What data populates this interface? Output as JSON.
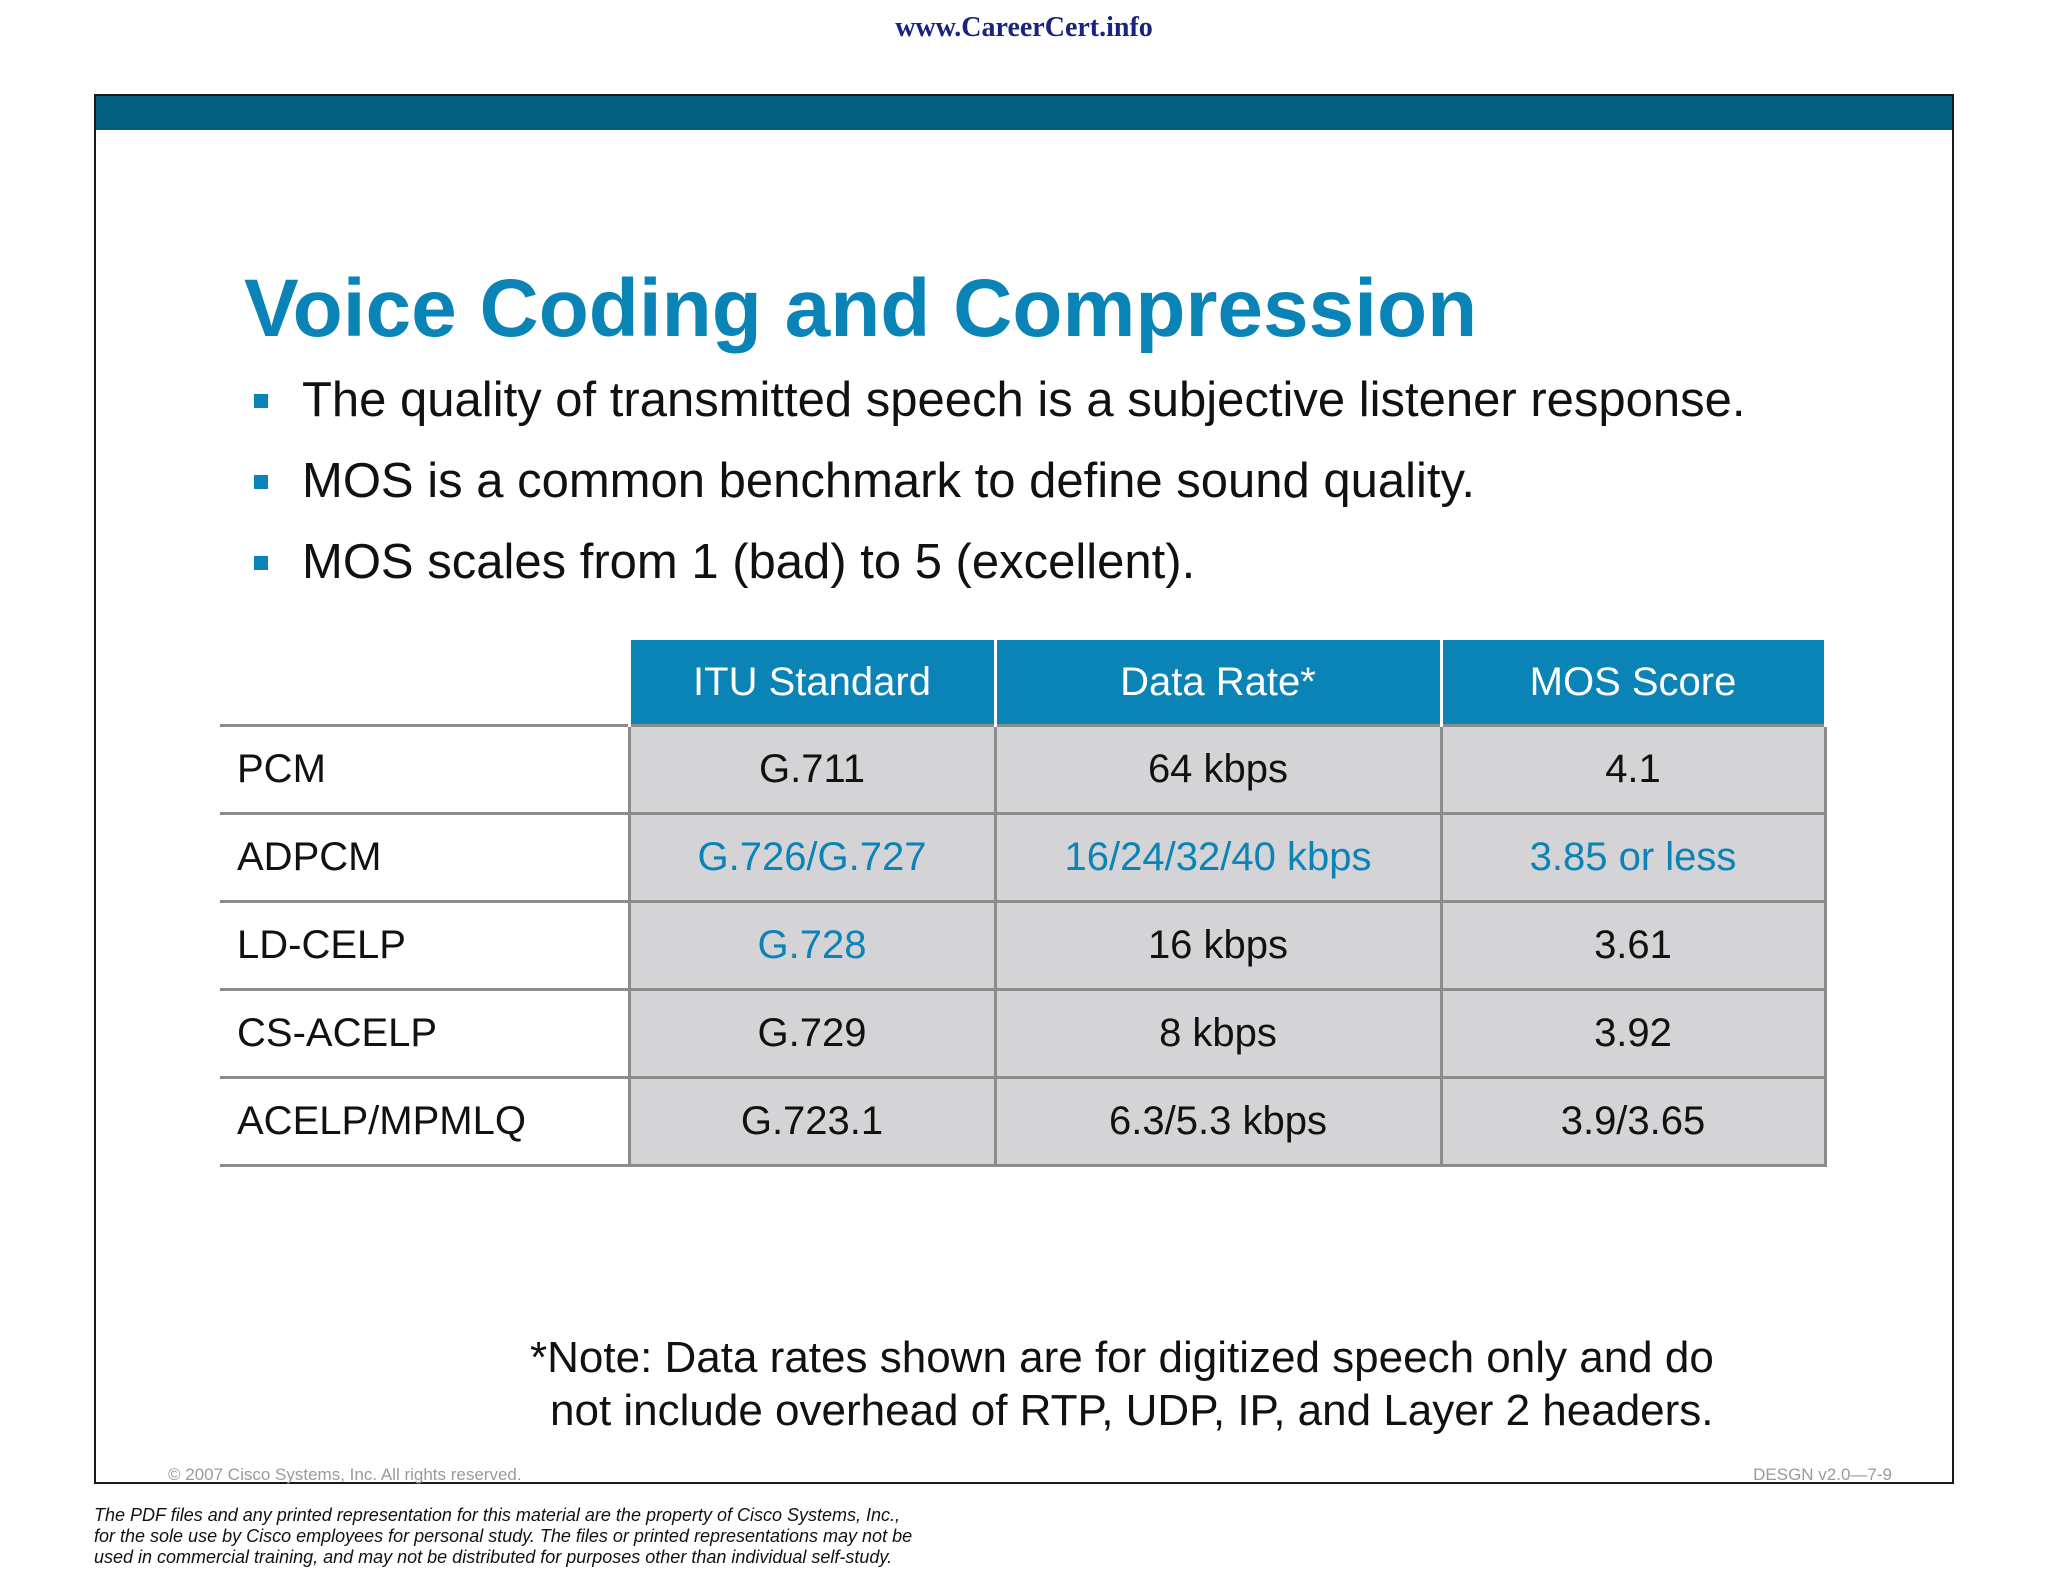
{
  "site_url": "www.CareerCert.info",
  "slide": {
    "title": "Voice Coding and Compression",
    "bullets": [
      "The quality of transmitted speech is a subjective listener response.",
      "MOS is a common benchmark to define sound quality.",
      "MOS scales from 1 (bad) to 5 (excellent)."
    ],
    "table": {
      "headers": [
        "ITU Standard",
        "Data Rate*",
        "MOS Score"
      ],
      "rows": [
        {
          "codec": "PCM",
          "standard": "G.711",
          "rate": "64 kbps",
          "mos": "4.1"
        },
        {
          "codec": "ADPCM",
          "standard": "G.726/G.727",
          "rate": "16/24/32/40 kbps",
          "mos": "3.85 or less"
        },
        {
          "codec": "LD-CELP",
          "standard": "G.728",
          "rate": "16 kbps",
          "mos": "3.61"
        },
        {
          "codec": "CS-ACELP",
          "standard": "G.729",
          "rate": "8 kbps",
          "mos": "3.92"
        },
        {
          "codec": "ACELP/MPMLQ",
          "standard": "G.723.1",
          "rate": "6.3/5.3 kbps",
          "mos": "3.9/3.65"
        }
      ]
    },
    "note_line1": "*Note: Data rates shown are for digitized speech only and do",
    "note_line2": "not include overhead of RTP, UDP, IP, and Layer 2 headers.",
    "copyright": "© 2007 Cisco Systems, Inc. All rights reserved.",
    "course_code": "DESGN v2.0—7-9"
  },
  "disclaimer": [
    "The PDF files and any printed representation for this material are the property of Cisco Systems, Inc.,",
    "for the sole use by Cisco employees for personal study. The files or printed representations may not be",
    "used in commercial training, and may not be distributed for purposes other than individual self-study."
  ],
  "colors": {
    "title_blue": "#0a84b6",
    "band": "#04607f",
    "cell_gray": "#d4d3d6",
    "url_navy": "#1a237e"
  }
}
